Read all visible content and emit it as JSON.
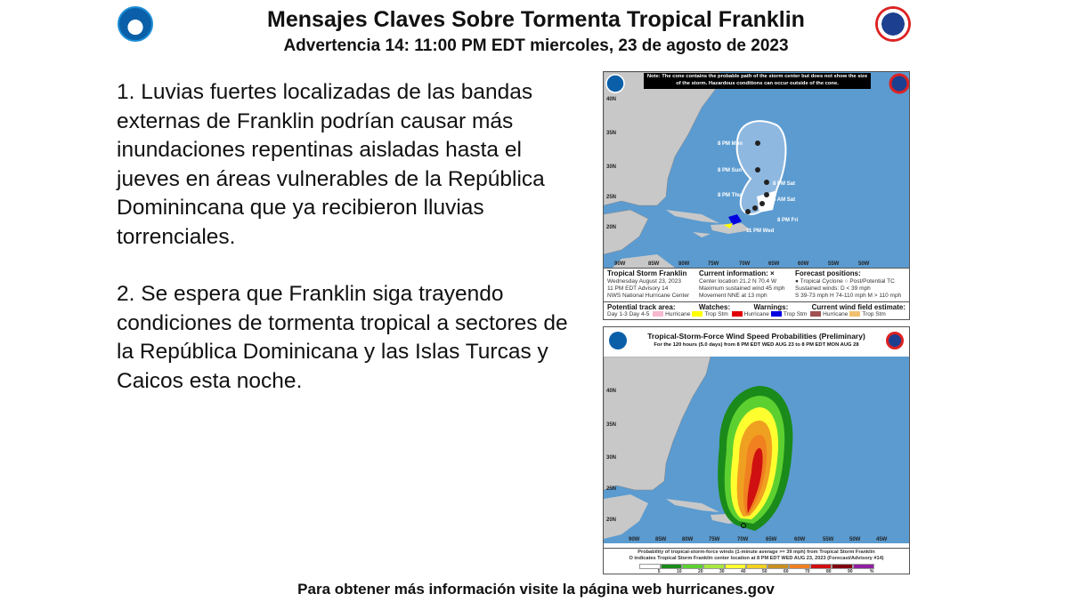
{
  "header": {
    "title": "Mensajes Claves Sobre Tormenta Tropical Franklin",
    "subtitle": "Advertencia 14:  11:00 PM EDT miercoles, 23 de agosto de 2023",
    "logo_left": "NOAA",
    "logo_right": "National Weather Service"
  },
  "messages": [
    "1. Luvias fuertes localizadas de las bandas externas de Franklin podrían causar más inundaciones repentinas aisladas hasta el jueves en áreas vulnerables de la República Dominincana que ya recibieron lluvias torrenciales.",
    "2. Se espera que Franklin siga trayendo condiciones de tormenta tropical a sectores de la República Dominicana y las Islas Turcas y Caicos esta noche."
  ],
  "cone_map": {
    "note": "Note: The cone contains the probable path of the storm center but does not show the size of the storm. Hazardous conditions can occur outside of the cone.",
    "lat_labels": [
      "40N",
      "35N",
      "30N",
      "25N",
      "20N"
    ],
    "lon_labels": [
      "90W",
      "85W",
      "80W",
      "75W",
      "70W",
      "65W",
      "60W",
      "55W",
      "50W"
    ],
    "track_labels": [
      "8 PM Mon",
      "8 PM Sun",
      "8 PM Sat",
      "8 AM Sat",
      "8 PM Thu",
      "8 PM Fri",
      "11 PM Wed"
    ],
    "storm": {
      "name": "Tropical Storm Franklin",
      "date": "Wednesday August 23, 2023",
      "advisory": "11 PM EDT Advisory 14",
      "center": "NWS National Hurricane Center"
    },
    "current": {
      "heading": "Current information: ×",
      "location": "Center location 21.2 N 70.4 W",
      "wind": "Maximum sustained wind 45 mph",
      "movement": "Movement NNE at 13 mph"
    },
    "forecast": {
      "heading": "Forecast positions:",
      "types": "● Tropical Cyclone  ○ Post/Potential TC",
      "winds_line1": "Sustained winds:     D < 39 mph",
      "winds_line2": "S 39-73 mph  H 74-110 mph  M > 110 mph"
    },
    "legend": {
      "track_heading": "Potential track area:",
      "day13": "Day 1-3",
      "day45": "Day 4-5",
      "watches": "Watches:",
      "warnings": "Warnings:",
      "wind_field": "Current wind field estimate:",
      "hurricane": "Hurricane",
      "trop_stm": "Trop Stm"
    },
    "colors": {
      "ocean": "#5b9bd0",
      "land": "#c8c8c8",
      "hurricane_watch": "#f7b8cf",
      "ts_watch": "#ffff00",
      "hurricane_warning": "#e00000",
      "ts_warning": "#0000e0",
      "hurricane_wind": "#a05050",
      "ts_wind": "#f0c070"
    }
  },
  "prob_map": {
    "title": "Tropical-Storm-Force Wind Speed Probabilities (Preliminary)",
    "subtitle": "For the 120 hours (5.0 days) from 8 PM EDT WED AUG 23 to 8 PM EDT MON AUG 28",
    "lat_labels": [
      "40N",
      "35N",
      "30N",
      "25N",
      "20N"
    ],
    "lon_labels": [
      "90W",
      "85W",
      "80W",
      "75W",
      "70W",
      "65W",
      "60W",
      "55W",
      "50W",
      "45W"
    ],
    "caption1": "Probability of tropical-storm-force winds (1-minute average >= 39 mph) from Tropical Storm Franklin",
    "caption2": "O indicates Tropical Storm Franklin center location at 8 PM EDT WED AUG 23, 2023 (Forecast/Advisory #14)",
    "scale_labels": [
      "5",
      "10",
      "20",
      "30",
      "40",
      "50",
      "60",
      "70",
      "80",
      "90",
      "%"
    ],
    "scale_colors": [
      "#ffffff",
      "#1a8a1a",
      "#5cd030",
      "#a8e840",
      "#ffff30",
      "#f0d020",
      "#c89020",
      "#f08020",
      "#d01010",
      "#800010",
      "#9020a0"
    ]
  },
  "footer": "Para obtener más información visite la página web hurricanes.gov"
}
